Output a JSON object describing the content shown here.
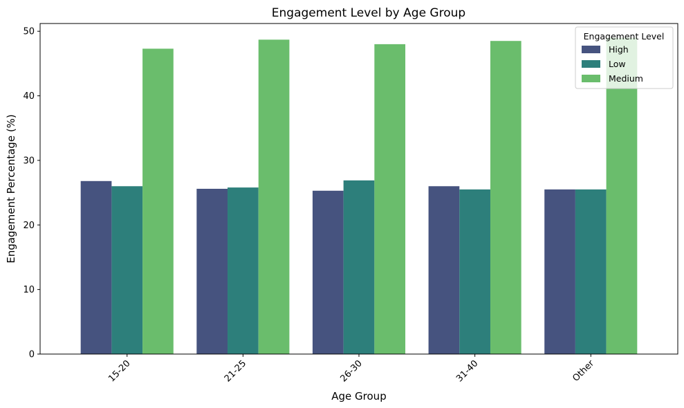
{
  "chart_data": {
    "type": "bar",
    "title": "Engagement Level by Age Group",
    "xlabel": "Age Group",
    "ylabel": "Engagement Percentage (%)",
    "categories": [
      "15-20",
      "21-25",
      "26-30",
      "31-40",
      "Other"
    ],
    "series": [
      {
        "name": "High",
        "color": "#46537f",
        "values": [
          26.8,
          25.6,
          25.3,
          26.0,
          25.5
        ]
      },
      {
        "name": "Low",
        "color": "#2d7f7b",
        "values": [
          26.0,
          25.8,
          26.9,
          25.5,
          25.5
        ]
      },
      {
        "name": "Medium",
        "color": "#6abd6c",
        "values": [
          47.3,
          48.7,
          48.0,
          48.5,
          49.0
        ]
      }
    ],
    "ylim": [
      0,
      51.2
    ],
    "yticks": [
      0,
      10,
      20,
      30,
      40,
      50
    ],
    "xtick_rotation": 45,
    "grid": false,
    "legend": {
      "title": "Engagement Level",
      "position": "top-right"
    }
  }
}
